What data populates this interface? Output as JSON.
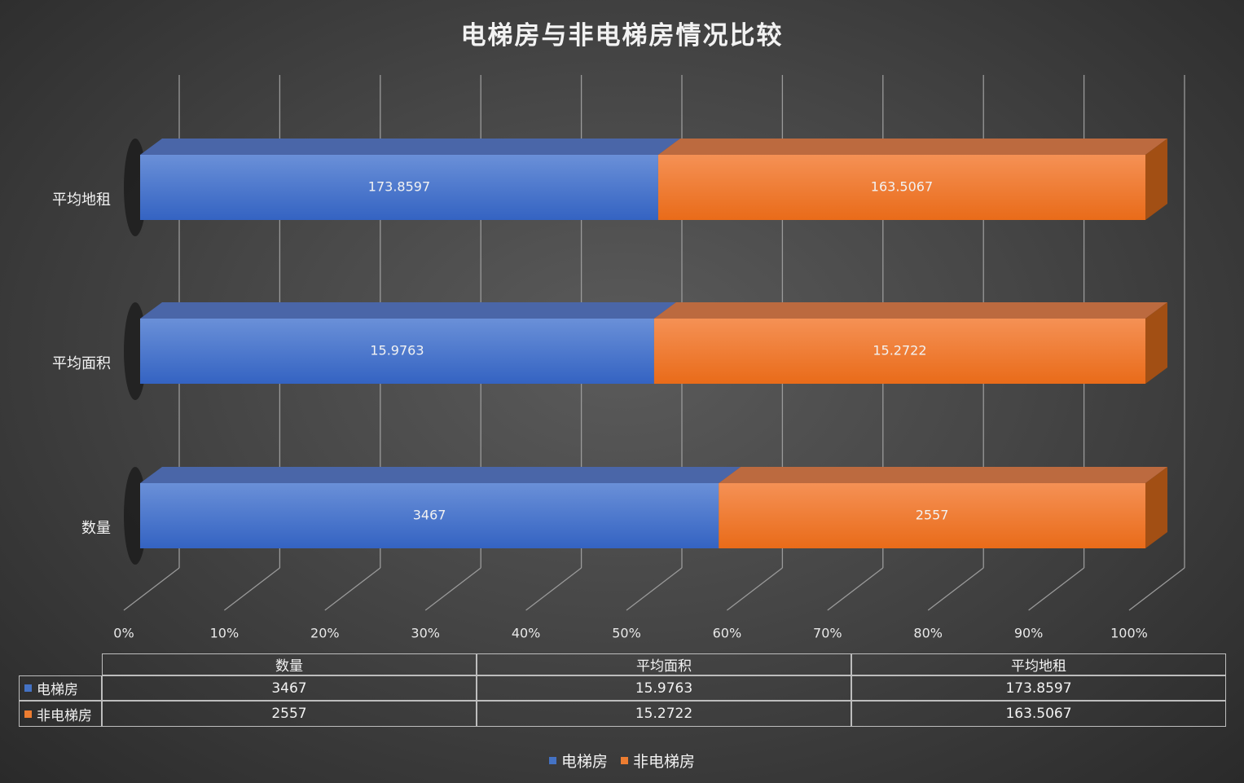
{
  "chart_data": {
    "type": "bar",
    "orientation": "horizontal",
    "stacking": "percent",
    "title": "电梯房与非电梯房情况比较",
    "categories": [
      "数量",
      "平均面积",
      "平均地租"
    ],
    "series": [
      {
        "name": "电梯房",
        "values": [
          3467,
          15.9763,
          173.8597
        ],
        "labels": [
          "3467",
          "15.9763",
          "173.8597"
        ],
        "color": "#4472c4"
      },
      {
        "name": "非电梯房",
        "values": [
          2557,
          15.2722,
          163.5067
        ],
        "labels": [
          "2557",
          "15.2722",
          "163.5067"
        ],
        "color": "#ed7d31"
      }
    ],
    "x_ticks": [
      "0%",
      "10%",
      "20%",
      "30%",
      "40%",
      "50%",
      "60%",
      "70%",
      "80%",
      "90%",
      "100%"
    ],
    "xlim": [
      0,
      100
    ],
    "grid": true,
    "three_d": true,
    "legend": "bottom",
    "data_table": true
  }
}
